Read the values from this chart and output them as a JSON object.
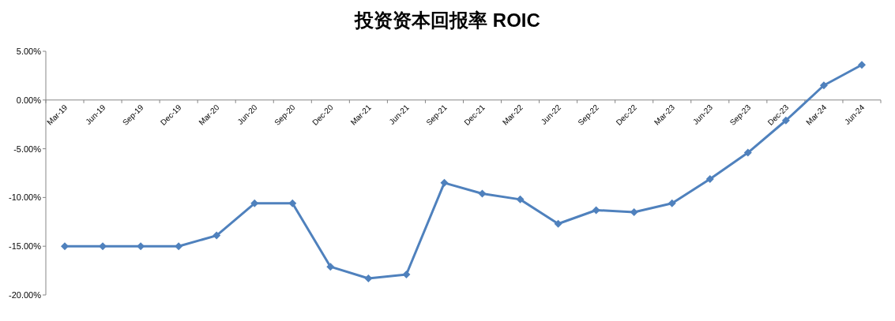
{
  "chart_data": {
    "type": "line",
    "title": "投资资本回报率 ROIC",
    "categories": [
      "Mar-19",
      "Jun-19",
      "Sep-19",
      "Dec-19",
      "Mar-20",
      "Jun-20",
      "Sep-20",
      "Dec-20",
      "Mar-21",
      "Jun-21",
      "Sep-21",
      "Dec-21",
      "Mar-22",
      "Jun-22",
      "Sep-22",
      "Dec-22",
      "Mar-23",
      "Jun-23",
      "Sep-23",
      "Dec-23",
      "Mar-24",
      "Jun-24"
    ],
    "series": [
      {
        "color": "#4f81bd",
        "values": [
          -15.0,
          -15.0,
          -15.0,
          -15.0,
          -13.9,
          -10.6,
          -10.6,
          -17.1,
          -18.3,
          -17.9,
          -8.5,
          -9.6,
          -10.2,
          -12.7,
          -11.3,
          -11.5,
          -10.6,
          -8.1,
          -5.4,
          -2.1,
          1.5,
          3.6
        ]
      }
    ],
    "ylim": [
      -20,
      5
    ],
    "yticks": [
      {
        "value": 5,
        "label": "5.00%"
      },
      {
        "value": 0,
        "label": "0.00%"
      },
      {
        "value": -5,
        "label": "-5.00%"
      },
      {
        "value": -10,
        "label": "-10.00%"
      },
      {
        "value": -15,
        "label": "-15.00%"
      },
      {
        "value": -20,
        "label": "-20.00%"
      }
    ],
    "marker": "diamond",
    "line_style": "solid",
    "grid": false
  }
}
